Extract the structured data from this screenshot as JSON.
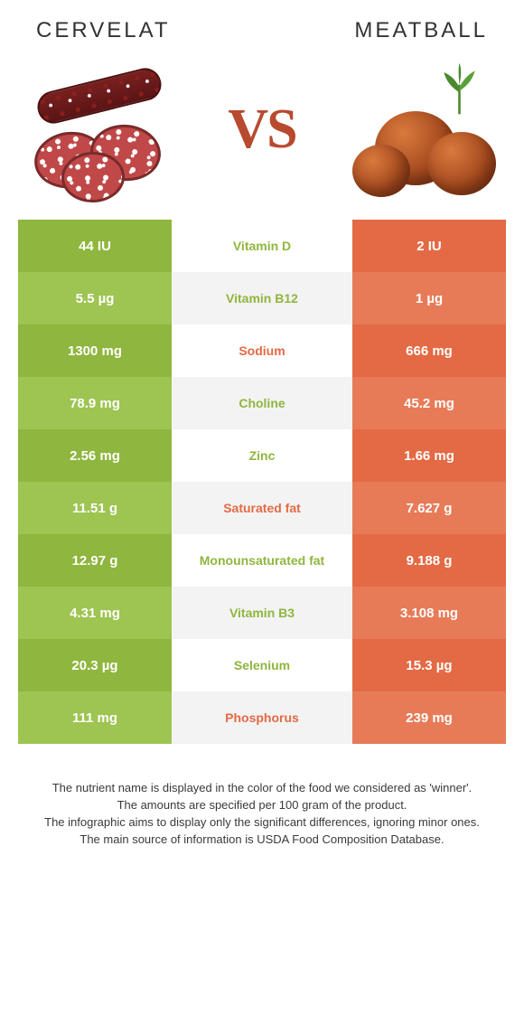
{
  "colors": {
    "left": "#8fb63e",
    "left_alt": "#9ec452",
    "right": "#e36a44",
    "right_alt": "#e77b58",
    "mid_text_left": "#8fb63e",
    "mid_text_right": "#e36a44",
    "vs": "#b84a2f",
    "title": "#333333"
  },
  "titles": {
    "left": "Cervelat",
    "right": "Meatball"
  },
  "vs_label": "VS",
  "rows": [
    {
      "nutrient": "Vitamin D",
      "left": "44 IU",
      "right": "2 IU",
      "winner": "left"
    },
    {
      "nutrient": "Vitamin B12",
      "left": "5.5 µg",
      "right": "1 µg",
      "winner": "left"
    },
    {
      "nutrient": "Sodium",
      "left": "1300 mg",
      "right": "666 mg",
      "winner": "right"
    },
    {
      "nutrient": "Choline",
      "left": "78.9 mg",
      "right": "45.2 mg",
      "winner": "left"
    },
    {
      "nutrient": "Zinc",
      "left": "2.56 mg",
      "right": "1.66 mg",
      "winner": "left"
    },
    {
      "nutrient": "Saturated fat",
      "left": "11.51 g",
      "right": "7.627 g",
      "winner": "right"
    },
    {
      "nutrient": "Monounsaturated fat",
      "left": "12.97 g",
      "right": "9.188 g",
      "winner": "left"
    },
    {
      "nutrient": "Vitamin B3",
      "left": "4.31 mg",
      "right": "3.108 mg",
      "winner": "left"
    },
    {
      "nutrient": "Selenium",
      "left": "20.3 µg",
      "right": "15.3 µg",
      "winner": "left"
    },
    {
      "nutrient": "Phosphorus",
      "left": "111 mg",
      "right": "239 mg",
      "winner": "right"
    }
  ],
  "footnotes": [
    "The nutrient name is displayed in the color of the food we considered as 'winner'.",
    "The amounts are specified per 100 gram of the product.",
    "The infographic aims to display only the significant differences, ignoring minor ones.",
    "The main source of information is USDA Food Composition Database."
  ]
}
